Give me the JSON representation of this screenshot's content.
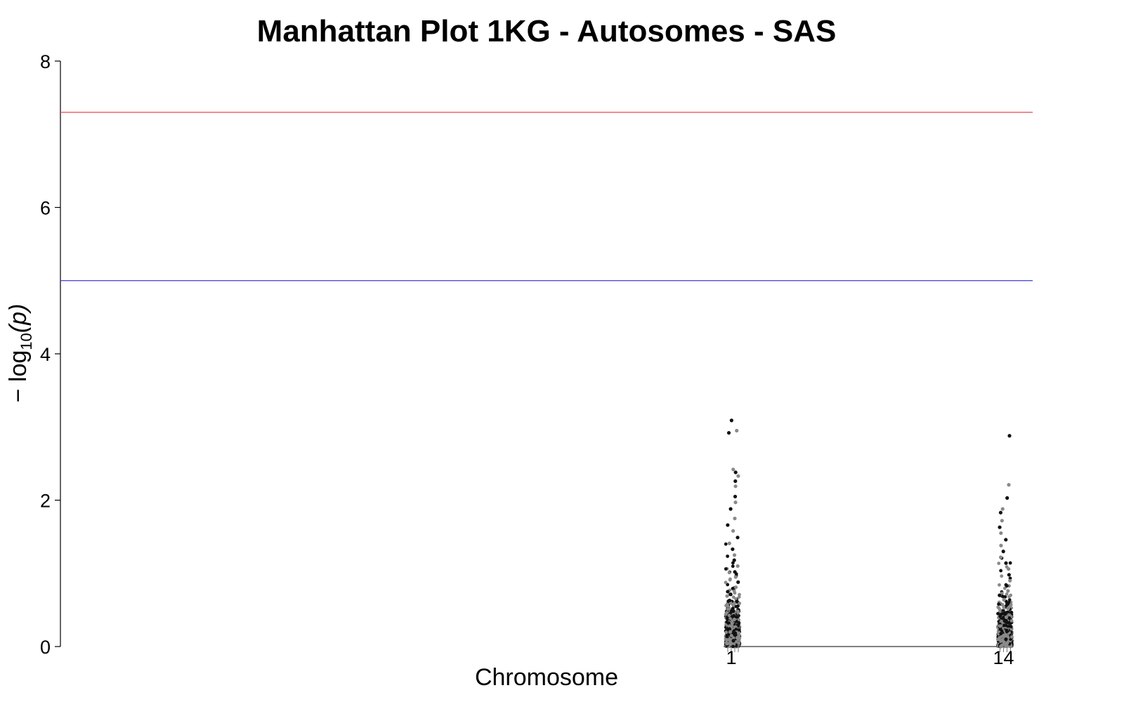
{
  "chart_data": {
    "type": "scatter",
    "title": "Manhattan Plot 1KG - Autosomes - SAS",
    "xlabel": "Chromosome",
    "ylabel": "− log10(p)",
    "ylabel_parts": {
      "prefix": "− log",
      "subscript": "10",
      "suffix": "(p)"
    },
    "ylim": [
      0,
      8
    ],
    "yticks": [
      0,
      2,
      4,
      6,
      8
    ],
    "x_positions": {
      "1": 0.69,
      "14": 0.97
    },
    "xticks": [
      {
        "label": "1",
        "chrom": "1"
      },
      {
        "label": "14",
        "chrom": "14"
      }
    ],
    "threshold_lines": [
      {
        "name": "genome-wide",
        "value": 7.3,
        "color": "#e8454f"
      },
      {
        "name": "suggestive",
        "value": 5.0,
        "color": "#3b3bd6"
      }
    ],
    "point_colors": [
      "#111111",
      "#8a8a8a"
    ],
    "series": [
      {
        "chrom": "1",
        "peaks": [
          3.09,
          2.95,
          2.92,
          2.42,
          2.38,
          2.33,
          2.26,
          2.19,
          2.05,
          1.97,
          1.88,
          1.75,
          1.66,
          1.58,
          1.49,
          1.41,
          1.33,
          1.25,
          1.18,
          1.1,
          1.02,
          0.95,
          0.88,
          0.81,
          0.75,
          0.69,
          0.63,
          0.57,
          0.52,
          0.47,
          0.42,
          0.37,
          0.32,
          0.28,
          0.24,
          0.2,
          0.16,
          0.12,
          0.08,
          0.04
        ],
        "n_background": 700
      },
      {
        "chrom": "14",
        "peaks": [
          2.88,
          2.21,
          2.03,
          1.88,
          1.83,
          1.72,
          1.63,
          1.55,
          1.46,
          1.38,
          1.3,
          1.22,
          1.14,
          1.06,
          0.98,
          0.9,
          0.83,
          0.76,
          0.7,
          0.64,
          0.58,
          0.52,
          0.46,
          0.4,
          0.34,
          0.28,
          0.22,
          0.16,
          0.1,
          0.05
        ],
        "n_background": 600
      }
    ]
  }
}
